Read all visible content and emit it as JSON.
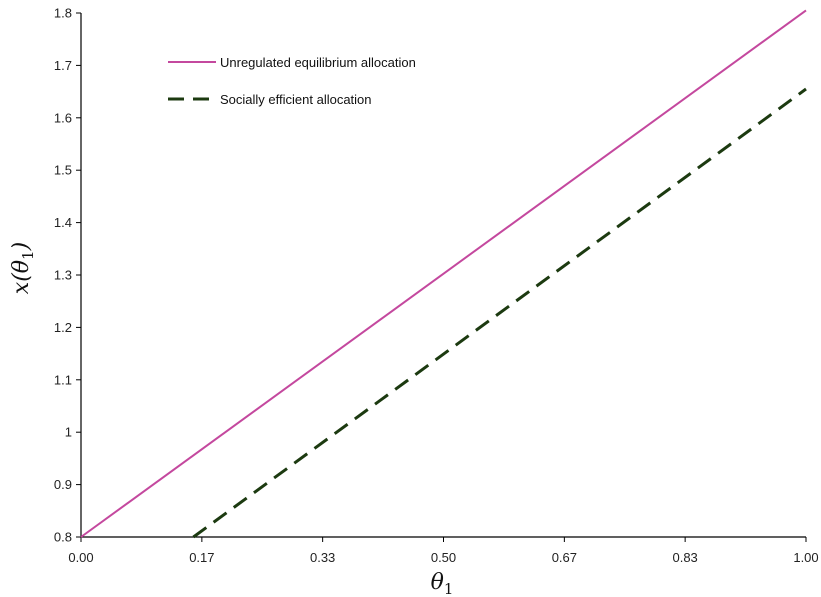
{
  "chart_data": {
    "type": "line",
    "title": "",
    "xlabel": "θ",
    "xlabel_subscript": "1",
    "ylabel": "x(θ",
    "ylabel_subscript": "1",
    "ylabel_close": ")",
    "xlim": [
      0,
      1
    ],
    "ylim": [
      0.8,
      1.8
    ],
    "x_ticks": [
      0,
      0.1667,
      0.3333,
      0.5,
      0.6667,
      0.8333,
      1
    ],
    "x_tick_labels": [
      "0.00",
      "0.17",
      "0.33",
      "0.50",
      "0.67",
      "0.83",
      "1.00"
    ],
    "y_ticks": [
      0.8,
      0.9,
      1,
      1.1,
      1.2,
      1.3,
      1.4,
      1.5,
      1.6,
      1.7,
      1.8
    ],
    "y_tick_labels": [
      "0.8",
      "0.9",
      "1",
      "1.1",
      "1.2",
      "1.3",
      "1.4",
      "1.5",
      "1.6",
      "1.7",
      "1.8"
    ],
    "grid": false,
    "legend_position": "top-left",
    "series": [
      {
        "name": "Unregulated equilibrium allocation",
        "color": "#c4489e",
        "dash": "solid",
        "x": [
          0,
          1
        ],
        "y": [
          0.8,
          1.805
        ]
      },
      {
        "name": "Socially efficient allocation",
        "color": "#1c3a10",
        "dash": "dashed",
        "x": [
          0.155,
          1
        ],
        "y": [
          0.8,
          1.655
        ]
      }
    ]
  }
}
